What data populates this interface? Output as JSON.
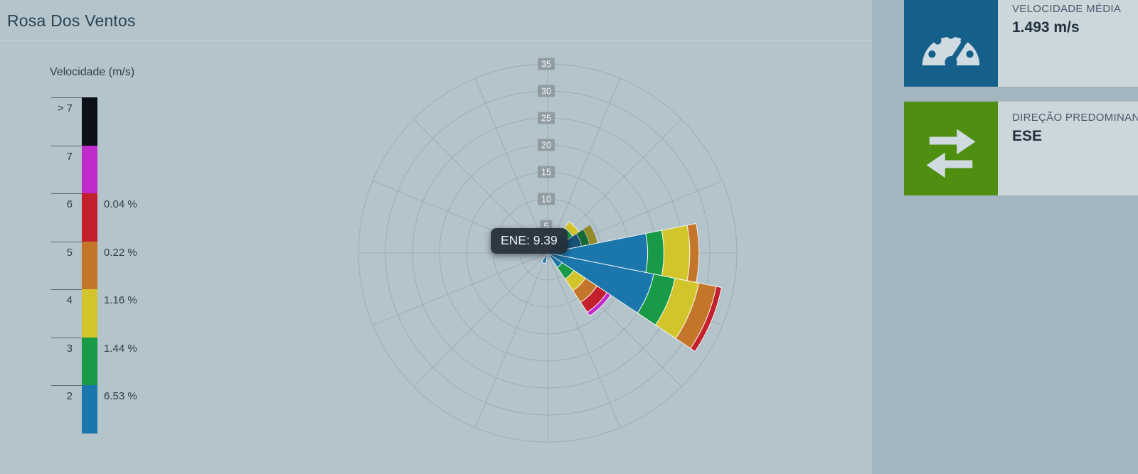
{
  "page": {
    "title": "Rosa Dos Ventos"
  },
  "legend": {
    "title": "Velocidade (m/s)",
    "rows": [
      {
        "bin": "> 7",
        "pct": "",
        "color": "#0c1018"
      },
      {
        "bin": "7",
        "pct": "",
        "color": "#c02ccb"
      },
      {
        "bin": "6",
        "pct": "0.04 %",
        "color": "#c2202c"
      },
      {
        "bin": "5",
        "pct": "0.22 %",
        "color": "#c3752a"
      },
      {
        "bin": "4",
        "pct": "1.16 %",
        "color": "#d2c52c"
      },
      {
        "bin": "3",
        "pct": "1.44 %",
        "color": "#189a47"
      },
      {
        "bin": "2",
        "pct": "6.53 %",
        "color": "#1b77ab"
      }
    ]
  },
  "chart_data": {
    "type": "wind-rose (polar stacked bar, 16 sectors of 22.5°)",
    "radial_ticks": [
      5,
      10,
      15,
      20,
      25,
      30,
      35
    ],
    "radial_max": 35,
    "grid": true,
    "speed_bins": [
      "2",
      "3",
      "4",
      "5",
      "6",
      "7",
      "> 7"
    ],
    "bin_colors": [
      "#1b77ab",
      "#189a47",
      "#d2c52c",
      "#c3752a",
      "#c2202c",
      "#c02ccb",
      "#0c1018"
    ],
    "sectors": [
      {
        "direction": "NE",
        "angle": 45,
        "cumulative": [
          4.5,
          5.6,
          7.0
        ]
      },
      {
        "direction": "ENE",
        "angle": 67.5,
        "cumulative": [
          6.4,
          7.9,
          9.39
        ],
        "hovered": true
      },
      {
        "direction": "E",
        "angle": 90,
        "cumulative": [
          18.5,
          21.5,
          26.3,
          28.0
        ]
      },
      {
        "direction": "ESE",
        "angle": 112.5,
        "cumulative": [
          20.0,
          24.0,
          28.5,
          31.8,
          32.8
        ]
      },
      {
        "direction": "SE",
        "angle": 135,
        "cumulative": [
          3.2,
          5.8,
          8.4,
          11.0,
          13.2,
          14.0
        ]
      },
      {
        "direction": "SSW",
        "angle": 202.5,
        "cumulative": [
          2.0
        ]
      }
    ],
    "tooltip": {
      "text": "ENE: 9.39"
    }
  },
  "stats": {
    "cards": [
      {
        "label": "VELOCIDADE MÉDIA",
        "value": "1.493 m/s",
        "icon": "gauge-icon",
        "accent": "#15608a"
      },
      {
        "label": "DIREÇÃO PREDOMINANTE",
        "value": "ESE",
        "icon": "transfer-arrows-icon",
        "accent": "#4e8e10"
      }
    ]
  }
}
